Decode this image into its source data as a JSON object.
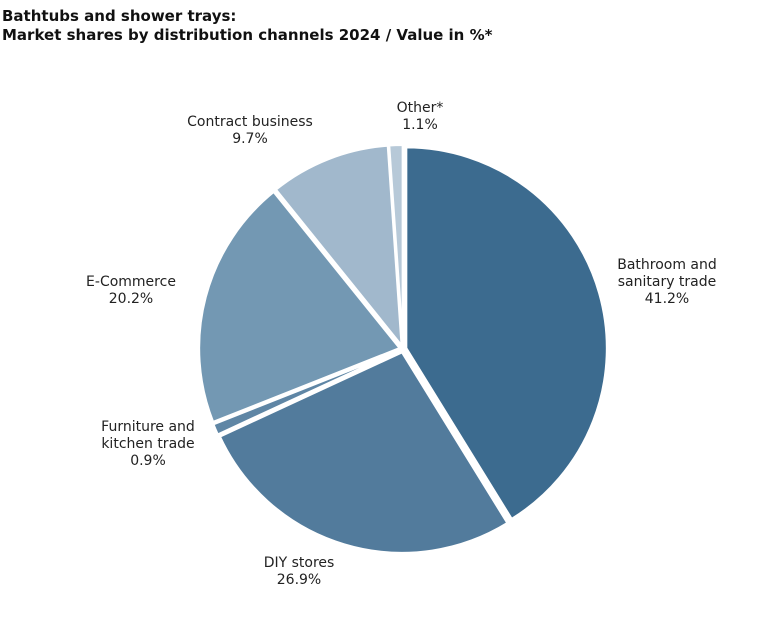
{
  "chart_data": {
    "type": "pie",
    "title": "Bathtubs and shower trays:",
    "subtitle": "Market shares by distribution channels 2024 / Value in %*",
    "unit": "%",
    "slices": [
      {
        "label_lines": [
          "Bathroom and",
          "sanitary trade"
        ],
        "value": 41.2,
        "value_label": "41.2%",
        "color": "#3c6b8f"
      },
      {
        "label_lines": [
          "DIY stores"
        ],
        "value": 26.9,
        "value_label": "26.9%",
        "color": "#527b9c"
      },
      {
        "label_lines": [
          "Furniture and",
          "kitchen trade"
        ],
        "value": 0.9,
        "value_label": "0.9%",
        "color": "#5f86a5"
      },
      {
        "label_lines": [
          "E-Commerce"
        ],
        "value": 20.2,
        "value_label": "20.2%",
        "color": "#7398b3"
      },
      {
        "label_lines": [
          "Contract business"
        ],
        "value": 9.7,
        "value_label": "9.7%",
        "color": "#a1b8cc"
      },
      {
        "label_lines": [
          "Other*"
        ],
        "value": 1.1,
        "value_label": "1.1%",
        "color": "#b7c9d8"
      }
    ]
  }
}
